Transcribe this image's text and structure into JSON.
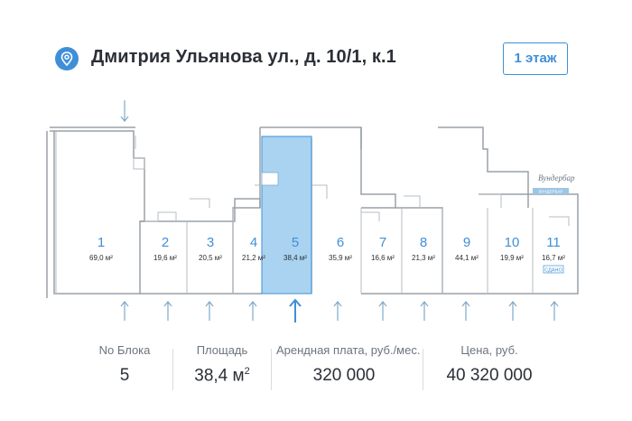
{
  "header": {
    "address": "Дмитрия Ульянова ул., д. 10/1, к.1",
    "floor_button": "1 этаж",
    "pin_icon": "location-pin-icon",
    "accent": "#3f8fd8"
  },
  "plan": {
    "highlight_color": "#a9d3f0",
    "units": [
      {
        "num": "1",
        "area": "69,0 м²"
      },
      {
        "num": "2",
        "area": "19,6 м²"
      },
      {
        "num": "3",
        "area": "20,5 м²"
      },
      {
        "num": "4",
        "area": "21,2 м²"
      },
      {
        "num": "5",
        "area": "38,4 м²",
        "selected": true
      },
      {
        "num": "6",
        "area": "35,9 м²"
      },
      {
        "num": "7",
        "area": "16,6 м²"
      },
      {
        "num": "8",
        "area": "21,3 м²"
      },
      {
        "num": "9",
        "area": "44,1 м²"
      },
      {
        "num": "10",
        "area": "19,9 м²"
      },
      {
        "num": "11",
        "area": "16,7 м²",
        "tag": "СДАНО"
      }
    ],
    "tenant_sign": "ВУНДЕРБАР"
  },
  "stats": {
    "block_label": "No Блока",
    "block_value": "5",
    "area_label": "Площадь",
    "area_value": "38,4 м",
    "area_sup": "2",
    "rent_label": "Арендная плата, руб./мес.",
    "rent_value": "320 000",
    "price_label": "Цена, руб.",
    "price_value": "40 320 000"
  }
}
